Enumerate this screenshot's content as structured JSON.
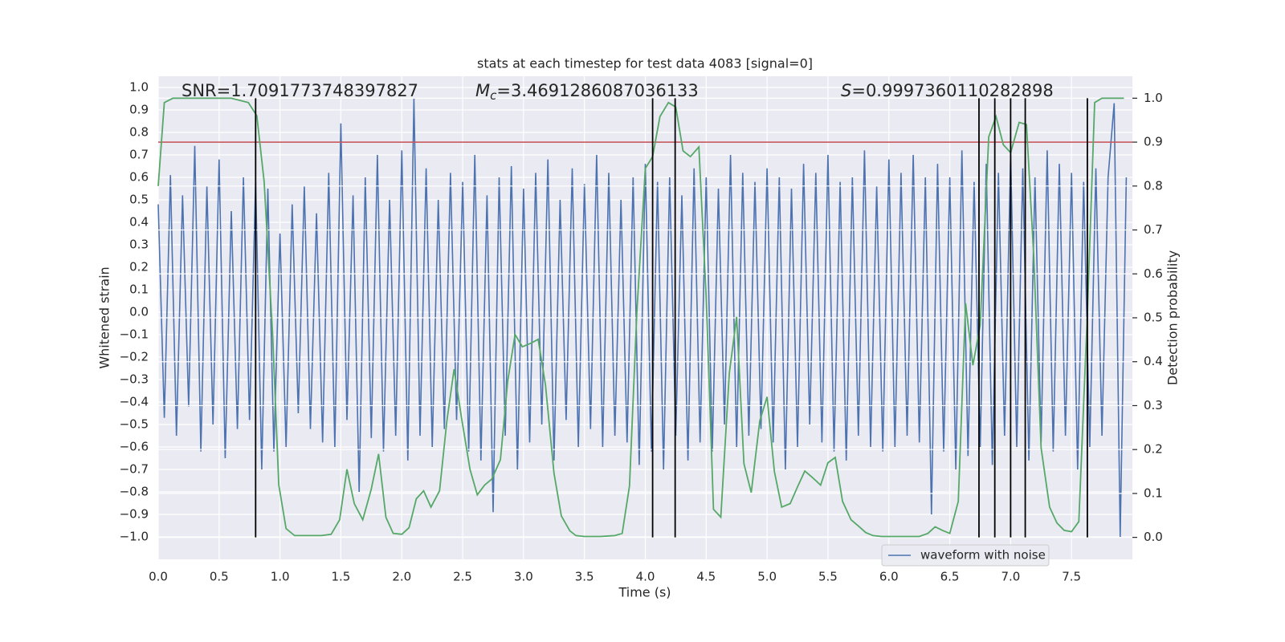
{
  "chart_data": {
    "type": "line",
    "title": "stats at each timestep for test data 4083 [signal=0]",
    "xlabel": "Time (s)",
    "ylabel": "Whitened strain",
    "y2label": "Detection probability",
    "annotations": [
      {
        "text": "SNR=1.7091773748397827"
      },
      {
        "symbol": "M",
        "subscript": "c",
        "text": "=3.4691286087036133"
      },
      {
        "symbol": "S",
        "text": "=0.9997360110282898"
      }
    ],
    "xlim": [
      0,
      8
    ],
    "ylim": [
      -1.1,
      1.05
    ],
    "y2lim": [
      -0.05,
      1.05
    ],
    "xticks": [
      {
        "value": 0,
        "label": "0.0"
      },
      0.5,
      {
        "value": 1,
        "label": "1.0"
      },
      1.5,
      {
        "value": 2,
        "label": "2.0"
      },
      2.5,
      {
        "value": 3,
        "label": "3.0"
      },
      3.5,
      {
        "value": 4,
        "label": "4.0"
      },
      4.5,
      {
        "value": 5,
        "label": "5.0"
      },
      5.5,
      {
        "value": 6,
        "label": "6.0"
      },
      6.5,
      {
        "value": 7,
        "label": "7.0"
      },
      7.5
    ],
    "yticks": [
      {
        "value": -1,
        "label": "−1.0"
      },
      {
        "value": -0.9,
        "label": "−0.9"
      },
      {
        "value": -0.8,
        "label": "−0.8"
      },
      {
        "value": -0.7,
        "label": "−0.7"
      },
      {
        "value": -0.6,
        "label": "−0.6"
      },
      {
        "value": -0.5,
        "label": "−0.5"
      },
      {
        "value": -0.4,
        "label": "−0.4"
      },
      {
        "value": -0.3,
        "label": "−0.3"
      },
      {
        "value": -0.2,
        "label": "−0.2"
      },
      {
        "value": -0.1,
        "label": "−0.1"
      },
      {
        "value": 0,
        "label": "0.0"
      },
      0.1,
      0.2,
      0.3,
      0.4,
      0.5,
      0.6,
      0.7,
      0.8,
      0.9,
      {
        "value": 1,
        "label": "1.0"
      }
    ],
    "y2ticks": [
      {
        "value": 0,
        "label": "0.0"
      },
      0.1,
      0.2,
      0.3,
      0.4,
      0.5,
      0.6,
      0.7,
      0.8,
      0.9,
      {
        "value": 1,
        "label": "1.0"
      }
    ],
    "grid": true,
    "legend": "lower right",
    "series": [
      {
        "name": "waveform with noise",
        "color": "#4c72b0",
        "x": [
          0,
          0.05,
          0.1,
          0.15,
          0.2,
          0.25,
          0.3,
          0.35,
          0.4,
          0.45,
          0.5,
          0.55,
          0.6,
          0.65,
          0.7,
          0.75,
          0.8,
          0.85,
          0.9,
          0.95,
          1,
          1.05,
          1.1,
          1.15,
          1.2,
          1.25,
          1.3,
          1.35,
          1.4,
          1.45,
          1.5,
          1.55,
          1.6,
          1.65,
          1.7,
          1.75,
          1.8,
          1.85,
          1.9,
          1.95,
          2,
          2.05,
          2.1,
          2.15,
          2.2,
          2.25,
          2.3,
          2.35,
          2.4,
          2.45,
          2.5,
          2.55,
          2.6,
          2.65,
          2.7,
          2.75,
          2.8,
          2.85,
          2.9,
          2.95,
          3,
          3.05,
          3.1,
          3.15,
          3.2,
          3.25,
          3.3,
          3.35,
          3.4,
          3.45,
          3.5,
          3.55,
          3.6,
          3.65,
          3.7,
          3.75,
          3.8,
          3.85,
          3.9,
          3.95,
          4,
          4.05,
          4.1,
          4.15,
          4.2,
          4.25,
          4.3,
          4.35,
          4.4,
          4.45,
          4.5,
          4.55,
          4.6,
          4.65,
          4.7,
          4.75,
          4.8,
          4.85,
          4.9,
          4.95,
          5,
          5.05,
          5.1,
          5.15,
          5.2,
          5.25,
          5.3,
          5.35,
          5.4,
          5.45,
          5.5,
          5.55,
          5.6,
          5.65,
          5.7,
          5.75,
          5.8,
          5.85,
          5.9,
          5.95,
          6,
          6.05,
          6.1,
          6.15,
          6.2,
          6.25,
          6.3,
          6.35,
          6.4,
          6.45,
          6.5,
          6.55,
          6.6,
          6.65,
          6.7,
          6.75,
          6.8,
          6.85,
          6.9,
          6.95,
          7,
          7.05,
          7.1,
          7.15,
          7.2,
          7.25,
          7.3,
          7.35,
          7.4,
          7.45,
          7.5,
          7.55,
          7.6,
          7.65,
          7.7,
          7.75,
          7.8,
          7.85,
          7.9,
          7.95
        ],
        "values": [
          0.48,
          -0.47,
          0.61,
          -0.55,
          0.52,
          -0.42,
          0.74,
          -0.62,
          0.56,
          -0.5,
          0.68,
          -0.65,
          0.45,
          -0.52,
          0.6,
          -0.48,
          0.58,
          -0.7,
          0.55,
          -0.62,
          0.35,
          -0.6,
          0.48,
          -0.45,
          0.56,
          -0.52,
          0.44,
          -0.58,
          0.62,
          -0.6,
          0.84,
          -0.48,
          0.52,
          -0.8,
          0.6,
          -0.56,
          0.7,
          -0.62,
          0.5,
          -0.55,
          0.72,
          -0.66,
          0.95,
          -0.55,
          0.64,
          -0.6,
          0.5,
          -0.52,
          0.62,
          -0.48,
          0.58,
          -0.62,
          0.7,
          -0.66,
          0.52,
          -0.89,
          0.6,
          -0.55,
          0.65,
          -0.7,
          0.55,
          -0.58,
          0.62,
          -0.5,
          0.68,
          -0.66,
          0.5,
          -0.48,
          0.64,
          -0.6,
          0.57,
          -0.52,
          0.7,
          -0.6,
          0.62,
          -0.55,
          0.5,
          -0.58,
          0.6,
          -0.68,
          0.66,
          -0.62,
          0.58,
          -0.7,
          0.6,
          -0.55,
          0.52,
          -0.66,
          0.64,
          -0.58,
          0.6,
          -0.62,
          0.55,
          -0.5,
          0.7,
          -0.6,
          0.62,
          -0.55,
          0.58,
          -0.52,
          0.64,
          -0.58,
          0.6,
          -0.7,
          0.55,
          -0.6,
          0.66,
          -0.5,
          0.62,
          -0.58,
          0.7,
          -0.62,
          0.58,
          -0.66,
          0.6,
          -0.55,
          0.72,
          -0.6,
          0.56,
          -0.62,
          0.68,
          -0.6,
          0.62,
          -0.55,
          0.7,
          -0.58,
          0.6,
          -0.9,
          0.66,
          -0.62,
          0.6,
          -0.7,
          0.72,
          -0.64,
          0.58,
          -0.6,
          0.66,
          -0.68,
          0.62,
          -0.55,
          0.7,
          -0.6,
          0.64,
          -0.66,
          0.6,
          -0.58,
          0.72,
          -0.62,
          0.66,
          -0.55,
          0.62,
          -0.7,
          0.58,
          -0.6,
          0.64,
          -0.55,
          0.6,
          0.93,
          -1.0,
          0.6
        ]
      },
      {
        "color": "#55a868",
        "axis": "y2",
        "x": [
          0,
          0.05,
          0.12,
          0.2,
          0.4,
          0.6,
          0.74,
          0.81,
          0.87,
          0.94,
          0.99,
          1.05,
          1.12,
          1.24,
          1.34,
          1.42,
          1.49,
          1.55,
          1.61,
          1.68,
          1.75,
          1.81,
          1.87,
          1.93,
          2.0,
          2.06,
          2.12,
          2.18,
          2.24,
          2.31,
          2.37,
          2.43,
          2.49,
          2.56,
          2.62,
          2.68,
          2.74,
          2.81,
          2.87,
          2.93,
          2.99,
          3.06,
          3.12,
          3.18,
          3.25,
          3.31,
          3.38,
          3.43,
          3.5,
          3.63,
          3.75,
          3.81,
          3.87,
          3.93,
          4.0,
          4.06,
          4.12,
          4.19,
          4.25,
          4.31,
          4.37,
          4.44,
          4.5,
          4.56,
          4.62,
          4.69,
          4.75,
          4.81,
          4.87,
          4.94,
          5.0,
          5.06,
          5.12,
          5.19,
          5.25,
          5.31,
          5.37,
          5.44,
          5.5,
          5.56,
          5.62,
          5.69,
          5.75,
          5.81,
          5.87,
          5.94,
          6.25,
          6.32,
          6.38,
          6.44,
          6.5,
          6.57,
          6.63,
          6.69,
          6.75,
          6.82,
          6.88,
          6.94,
          7.0,
          7.07,
          7.13,
          7.19,
          7.25,
          7.32,
          7.38,
          7.44,
          7.5,
          7.56,
          7.63,
          7.69,
          7.75,
          7.93
        ],
        "values": [
          0.8,
          0.99,
          1.0,
          1.0,
          1.0,
          1.0,
          0.99,
          0.96,
          0.81,
          0.46,
          0.12,
          0.02,
          0.004,
          0.004,
          0.004,
          0.007,
          0.04,
          0.155,
          0.077,
          0.04,
          0.11,
          0.19,
          0.046,
          0.009,
          0.007,
          0.022,
          0.088,
          0.106,
          0.069,
          0.106,
          0.265,
          0.383,
          0.274,
          0.155,
          0.097,
          0.119,
          0.133,
          0.177,
          0.356,
          0.462,
          0.434,
          0.442,
          0.451,
          0.347,
          0.146,
          0.049,
          0.015,
          0.004,
          0.002,
          0.002,
          0.004,
          0.009,
          0.117,
          0.51,
          0.84,
          0.867,
          0.958,
          0.99,
          0.98,
          0.88,
          0.867,
          0.889,
          0.547,
          0.064,
          0.046,
          0.374,
          0.502,
          0.168,
          0.102,
          0.265,
          0.32,
          0.15,
          0.069,
          0.077,
          0.115,
          0.151,
          0.137,
          0.119,
          0.17,
          0.182,
          0.082,
          0.04,
          0.026,
          0.011,
          0.004,
          0.002,
          0.002,
          0.009,
          0.024,
          0.016,
          0.009,
          0.082,
          0.533,
          0.392,
          0.484,
          0.912,
          0.958,
          0.894,
          0.876,
          0.945,
          0.94,
          0.639,
          0.204,
          0.069,
          0.033,
          0.016,
          0.013,
          0.036,
          0.51,
          0.99,
          1.0,
          1.0
        ]
      }
    ],
    "threshold": {
      "value": 0.9,
      "color": "#c44e52",
      "axis": "y2"
    },
    "detections": {
      "x": [
        0.8,
        4.06,
        4.245,
        6.74,
        6.87,
        7.0,
        7.12,
        7.63
      ],
      "ymin": 0,
      "ymax": 1,
      "axis": "y2",
      "color": "#000000"
    }
  }
}
